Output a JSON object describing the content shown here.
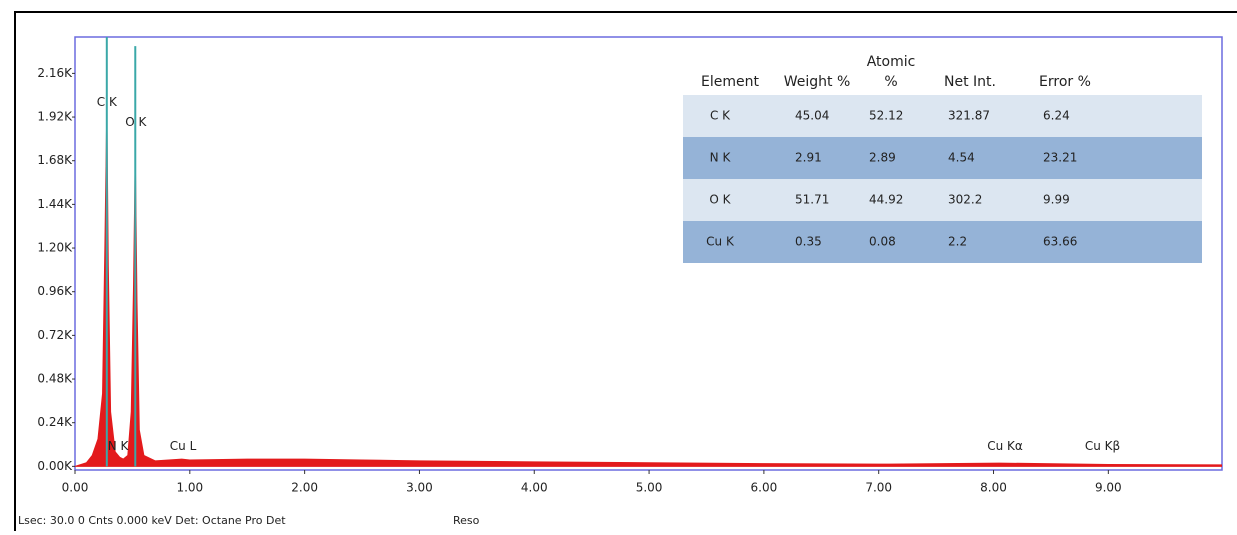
{
  "chart_data": {
    "type": "area",
    "color": "#e31a1c",
    "marker_color": "#3aa8a8",
    "x": [
      0.0,
      0.1,
      0.15,
      0.2,
      0.24,
      0.26,
      0.277,
      0.29,
      0.31,
      0.35,
      0.39,
      0.42,
      0.46,
      0.49,
      0.51,
      0.525,
      0.54,
      0.56,
      0.6,
      0.7,
      0.93,
      1.0,
      1.5,
      2.0,
      2.5,
      3.0,
      4.0,
      5.0,
      6.0,
      7.0,
      8.05,
      9.0,
      9.99
    ],
    "values": [
      0,
      20,
      60,
      150,
      400,
      1200,
      1970,
      1100,
      300,
      80,
      50,
      40,
      60,
      300,
      1000,
      1720,
      900,
      200,
      60,
      30,
      40,
      35,
      40,
      40,
      35,
      30,
      25,
      20,
      15,
      12,
      18,
      10,
      8
    ],
    "xlim": [
      0,
      9.99
    ],
    "ylim": [
      -20,
      2360
    ],
    "xticks": [
      {
        "value": 0,
        "label": "0.00"
      },
      {
        "value": 1,
        "label": "1.00"
      },
      {
        "value": 2,
        "label": "2.00"
      },
      {
        "value": 3,
        "label": "3.00"
      },
      {
        "value": 4,
        "label": "4.00"
      },
      {
        "value": 5,
        "label": "5.00"
      },
      {
        "value": 6,
        "label": "6.00"
      },
      {
        "value": 7,
        "label": "7.00"
      },
      {
        "value": 8,
        "label": "8.00"
      },
      {
        "value": 9,
        "label": "9.00"
      }
    ],
    "yticks": [
      {
        "value": 0,
        "label": "0.00K"
      },
      {
        "value": 240,
        "label": "0.24K"
      },
      {
        "value": 480,
        "label": "0.48K"
      },
      {
        "value": 720,
        "label": "0.72K"
      },
      {
        "value": 960,
        "label": "0.96K"
      },
      {
        "value": 1200,
        "label": "1.20K"
      },
      {
        "value": 1440,
        "label": "1.44K"
      },
      {
        "value": 1680,
        "label": "1.68K"
      },
      {
        "value": 1920,
        "label": "1.92K"
      },
      {
        "value": 2160,
        "label": "2.16K"
      }
    ],
    "markers": [
      {
        "label": "C K",
        "x": 0.277,
        "height": 2500,
        "label_y": 2000
      },
      {
        "label": "O K",
        "x": 0.525,
        "height": 2310,
        "label_y": 1890
      }
    ],
    "annotations": [
      {
        "text": "N K",
        "x": 0.39,
        "y": 110
      },
      {
        "text": "Cu L",
        "x": 0.93,
        "y": 110
      },
      {
        "text": "Cu Kα",
        "x": 8.05,
        "y": 110
      },
      {
        "text": "Cu Kβ",
        "x": 8.9,
        "y": 110
      }
    ]
  },
  "table": {
    "header": [
      "Element",
      "Weight %",
      "Atomic %",
      "Net Int.",
      "Error %"
    ],
    "rows": [
      [
        "C K",
        "45.04",
        "52.12",
        "321.87",
        "6.24"
      ],
      [
        "N K",
        "2.91",
        "2.89",
        "4.54",
        "23.21"
      ],
      [
        "O K",
        "51.71",
        "44.92",
        "302.2",
        "9.99"
      ],
      [
        "Cu K",
        "0.35",
        "0.08",
        "2.2",
        "63.66"
      ]
    ]
  },
  "footer": {
    "status": "Lsec: 30.0 0 Cnts 0.000 keV Det: Octane Pro Det",
    "reso": "Reso"
  }
}
